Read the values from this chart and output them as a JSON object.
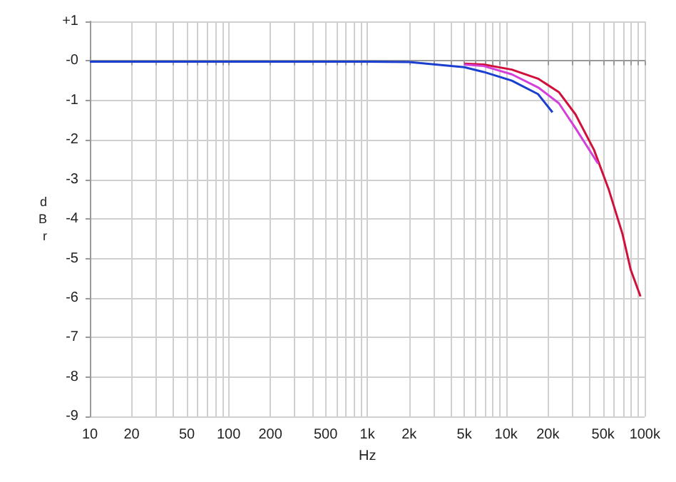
{
  "chart_data": {
    "type": "line",
    "xlabel": "Hz",
    "ylabel": "dBr",
    "log": "x",
    "grid": true,
    "marker": "none",
    "line_style": "solid",
    "xlim": [
      10,
      100000
    ],
    "xticks": [
      10,
      20,
      {
        "value": 30,
        "label": null
      },
      {
        "value": 40,
        "label": null
      },
      50,
      {
        "value": 60,
        "label": null
      },
      {
        "value": 70,
        "label": null
      },
      {
        "value": 80,
        "label": null
      },
      {
        "value": 90,
        "label": null
      },
      100,
      200,
      {
        "value": 300,
        "label": null
      },
      {
        "value": 400,
        "label": null
      },
      500,
      {
        "value": 600,
        "label": null
      },
      {
        "value": 700,
        "label": null
      },
      {
        "value": 800,
        "label": null
      },
      {
        "value": 900,
        "label": null
      },
      {
        "value": 1000,
        "label": "1k"
      },
      {
        "value": 2000,
        "label": "2k"
      },
      {
        "value": 3000,
        "label": null
      },
      {
        "value": 4000,
        "label": null
      },
      {
        "value": 5000,
        "label": "5k"
      },
      {
        "value": 6000,
        "label": null
      },
      {
        "value": 7000,
        "label": null
      },
      {
        "value": 8000,
        "label": null
      },
      {
        "value": 9000,
        "label": null
      },
      {
        "value": 10000,
        "label": "10k"
      },
      {
        "value": 20000,
        "label": "20k"
      },
      {
        "value": 30000,
        "label": null
      },
      {
        "value": 40000,
        "label": null
      },
      {
        "value": 50000,
        "label": "50k"
      },
      {
        "value": 60000,
        "label": null
      },
      {
        "value": 70000,
        "label": null
      },
      {
        "value": 80000,
        "label": null
      },
      {
        "value": 90000,
        "label": null
      },
      {
        "value": 100000,
        "label": "100k"
      }
    ],
    "ylim": [
      -9,
      1
    ],
    "yticks": [
      {
        "value": 1,
        "label": "+1"
      },
      {
        "value": 0,
        "label": "-0"
      },
      -1,
      -2,
      -3,
      -4,
      -5,
      -6,
      -7,
      -8,
      -9
    ],
    "series": [
      {
        "color": "#d0103a",
        "x": [
          5000,
          6900,
          11000,
          17000,
          24000,
          31600,
          43000,
          55000,
          69000,
          79000,
          93000
        ],
        "values": [
          -0.07,
          -0.09,
          -0.22,
          -0.45,
          -0.79,
          -1.35,
          -2.25,
          -3.26,
          -4.38,
          -5.28,
          -5.96
        ]
      },
      {
        "color": "#d43fd9",
        "x": [
          5000,
          6900,
          11000,
          17000,
          24000,
          31600,
          46000
        ],
        "values": [
          -0.09,
          -0.13,
          -0.34,
          -0.67,
          -1.07,
          -1.7,
          -2.6
        ]
      },
      {
        "color": "#1a3fcf",
        "x": [
          10,
          100,
          1000,
          2000,
          5000,
          6900,
          11000,
          17000,
          21600
        ],
        "values": [
          -0.02,
          -0.02,
          -0.02,
          -0.03,
          -0.16,
          -0.28,
          -0.5,
          -0.84,
          -1.3
        ]
      }
    ]
  }
}
